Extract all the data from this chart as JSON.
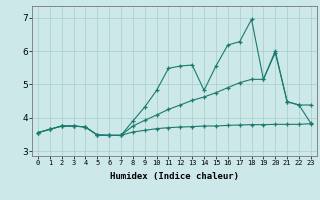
{
  "title": "",
  "xlabel": "Humidex (Indice chaleur)",
  "ylabel": "",
  "bg_color": "#cce8e8",
  "grid_color": "#aacccc",
  "line_color": "#1a7a6e",
  "xlim": [
    -0.5,
    23.5
  ],
  "ylim": [
    2.85,
    7.35
  ],
  "xticks": [
    0,
    1,
    2,
    3,
    4,
    5,
    6,
    7,
    8,
    9,
    10,
    11,
    12,
    13,
    14,
    15,
    16,
    17,
    18,
    19,
    20,
    21,
    22,
    23
  ],
  "yticks": [
    3,
    4,
    5,
    6,
    7
  ],
  "line1_x": [
    0,
    1,
    2,
    3,
    4,
    5,
    6,
    7,
    8,
    9,
    10,
    11,
    12,
    13,
    14,
    15,
    16,
    17,
    18,
    19,
    20,
    21,
    22,
    23
  ],
  "line1_y": [
    3.55,
    3.65,
    3.75,
    3.75,
    3.72,
    3.48,
    3.47,
    3.47,
    3.9,
    4.32,
    4.82,
    5.48,
    5.55,
    5.58,
    4.82,
    5.55,
    6.18,
    6.28,
    6.95,
    5.15,
    5.95,
    4.48,
    4.38,
    4.38
  ],
  "line2_x": [
    0,
    1,
    2,
    3,
    4,
    5,
    6,
    7,
    8,
    9,
    10,
    11,
    12,
    13,
    14,
    15,
    16,
    17,
    18,
    19,
    20,
    21,
    22,
    23
  ],
  "line2_y": [
    3.55,
    3.65,
    3.75,
    3.75,
    3.72,
    3.48,
    3.47,
    3.47,
    3.75,
    3.92,
    4.08,
    4.25,
    4.38,
    4.52,
    4.62,
    4.75,
    4.9,
    5.05,
    5.15,
    5.15,
    6.0,
    4.48,
    4.38,
    3.83
  ],
  "line3_x": [
    0,
    1,
    2,
    3,
    4,
    5,
    6,
    7,
    8,
    9,
    10,
    11,
    12,
    13,
    14,
    15,
    16,
    17,
    18,
    19,
    20,
    21,
    22,
    23
  ],
  "line3_y": [
    3.55,
    3.65,
    3.75,
    3.75,
    3.72,
    3.48,
    3.47,
    3.47,
    3.57,
    3.62,
    3.67,
    3.7,
    3.72,
    3.73,
    3.75,
    3.75,
    3.77,
    3.78,
    3.79,
    3.79,
    3.8,
    3.8,
    3.8,
    3.82
  ]
}
